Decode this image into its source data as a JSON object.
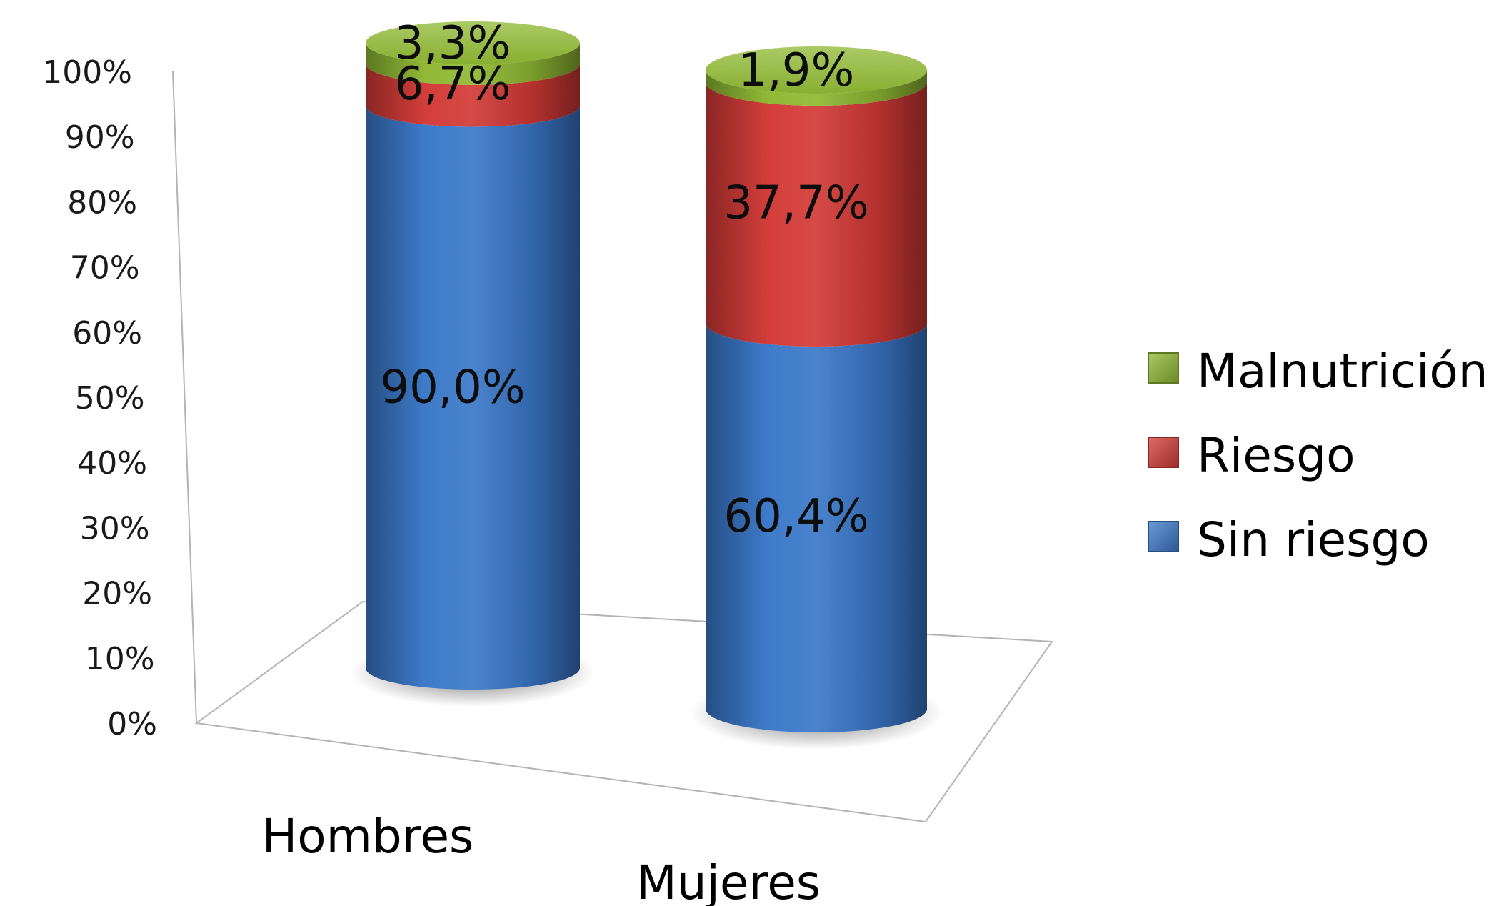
{
  "chart_data": {
    "type": "bar",
    "stacked": true,
    "style": "3d-cylinder",
    "categories": [
      "Hombres",
      "Mujeres"
    ],
    "series": [
      {
        "name": "Sin riesgo",
        "values": [
          90.0,
          60.4
        ],
        "labels": [
          "90,0%",
          "60,4%"
        ],
        "color": "#3a78c9"
      },
      {
        "name": "Riesgo",
        "values": [
          6.7,
          37.7
        ],
        "labels": [
          "6,7%",
          "37,7%"
        ],
        "color": "#d23a36"
      },
      {
        "name": "Malnutrición",
        "values": [
          3.3,
          1.9
        ],
        "labels": [
          "3,3%",
          "1,9%"
        ],
        "color": "#8fb832"
      }
    ],
    "yticks": [
      "0%",
      "10%",
      "20%",
      "30%",
      "40%",
      "50%",
      "60%",
      "70%",
      "80%",
      "90%",
      "100%"
    ],
    "ylim": [
      0,
      100
    ],
    "grid": false,
    "legend": {
      "position": "right",
      "order": [
        "Malnutrición",
        "Riesgo",
        "Sin riesgo"
      ]
    }
  }
}
